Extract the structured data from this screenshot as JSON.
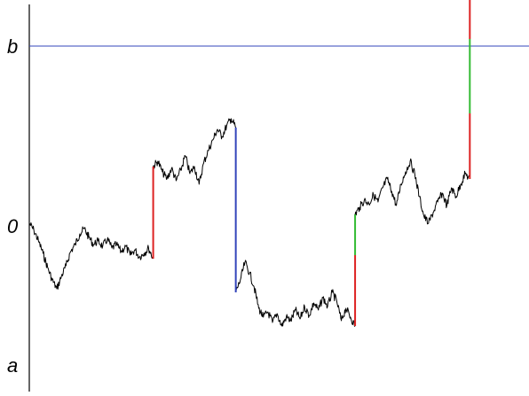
{
  "chart_data": {
    "type": "line",
    "title": "",
    "xlabel": "",
    "ylabel": "",
    "grid": false,
    "xlim": [
      0,
      1
    ],
    "ylim": [
      -1.18,
      1.28
    ],
    "levels": [
      {
        "label": "b",
        "value": 1.0,
        "color": "#3344bb"
      },
      {
        "label": "0",
        "value": 0.0,
        "color": null
      },
      {
        "label": "a",
        "value": -1.0,
        "color": "#3344bb"
      }
    ],
    "path_color": "#000000",
    "segments": [
      {
        "x": [
          0.0,
          0.01,
          0.02,
          0.03,
          0.04,
          0.05,
          0.06,
          0.07,
          0.08,
          0.09,
          0.1,
          0.11,
          0.12,
          0.13,
          0.14,
          0.15,
          0.16,
          0.17,
          0.18,
          0.19,
          0.2,
          0.21,
          0.22,
          0.23,
          0.24,
          0.25,
          0.26,
          0.27
        ],
        "y": [
          0.0,
          -0.04,
          -0.1,
          -0.17,
          -0.25,
          -0.32,
          -0.37,
          -0.3,
          -0.24,
          -0.16,
          -0.12,
          -0.06,
          -0.03,
          -0.08,
          -0.12,
          -0.1,
          -0.13,
          -0.09,
          -0.14,
          -0.12,
          -0.16,
          -0.13,
          -0.18,
          -0.15,
          -0.19,
          -0.17,
          -0.14,
          -0.2
        ]
      },
      {
        "x": [
          0.27,
          0.28,
          0.29,
          0.3,
          0.31,
          0.32,
          0.33,
          0.34,
          0.35,
          0.36,
          0.37,
          0.38,
          0.39,
          0.4,
          0.41,
          0.42,
          0.43,
          0.44,
          0.45
        ],
        "y": [
          0.32,
          0.35,
          0.29,
          0.25,
          0.31,
          0.24,
          0.3,
          0.38,
          0.28,
          0.32,
          0.22,
          0.34,
          0.41,
          0.47,
          0.53,
          0.49,
          0.55,
          0.59,
          0.54
        ]
      },
      {
        "x": [
          0.45,
          0.46,
          0.47,
          0.48,
          0.49,
          0.5,
          0.51,
          0.52,
          0.53,
          0.54,
          0.55,
          0.56,
          0.57,
          0.58,
          0.59,
          0.6,
          0.61,
          0.62,
          0.63,
          0.64,
          0.65,
          0.66,
          0.67,
          0.68,
          0.69,
          0.7,
          0.71
        ],
        "y": [
          -0.39,
          -0.32,
          -0.22,
          -0.28,
          -0.36,
          -0.48,
          -0.53,
          -0.5,
          -0.56,
          -0.51,
          -0.58,
          -0.53,
          -0.55,
          -0.49,
          -0.54,
          -0.47,
          -0.52,
          -0.45,
          -0.49,
          -0.42,
          -0.47,
          -0.39,
          -0.44,
          -0.55,
          -0.48,
          -0.53,
          -0.58
        ]
      },
      {
        "x": [
          0.71,
          0.72,
          0.73,
          0.74,
          0.75,
          0.76,
          0.77,
          0.78,
          0.79,
          0.8,
          0.81,
          0.82,
          0.83,
          0.84,
          0.85,
          0.86,
          0.87,
          0.88,
          0.89,
          0.9,
          0.91,
          0.92,
          0.93,
          0.94,
          0.95,
          0.96
        ],
        "y": [
          0.05,
          0.09,
          0.13,
          0.11,
          0.16,
          0.12,
          0.2,
          0.25,
          0.18,
          0.1,
          0.22,
          0.29,
          0.35,
          0.28,
          0.15,
          0.04,
          0.0,
          0.06,
          0.12,
          0.17,
          0.1,
          0.2,
          0.15,
          0.22,
          0.28,
          0.25
        ]
      }
    ],
    "jumps": [
      {
        "x": 0.27,
        "parts": [
          {
            "from": -0.2,
            "to": 0.32,
            "color": "#dd2222"
          }
        ]
      },
      {
        "x": 0.45,
        "parts": [
          {
            "from": 0.54,
            "to": -0.39,
            "color": "#3344bb"
          }
        ]
      },
      {
        "x": 0.71,
        "parts": [
          {
            "from": -0.58,
            "to": -0.18,
            "color": "#dd2222"
          },
          {
            "from": -0.18,
            "to": 0.05,
            "color": "#33bb33"
          }
        ]
      },
      {
        "x": 0.96,
        "parts": [
          {
            "from": 0.25,
            "to": 0.62,
            "color": "#dd2222"
          },
          {
            "from": 0.62,
            "to": 1.04,
            "color": "#33bb33"
          },
          {
            "from": 1.04,
            "to": 1.28,
            "color": "#dd2222"
          }
        ]
      }
    ]
  }
}
